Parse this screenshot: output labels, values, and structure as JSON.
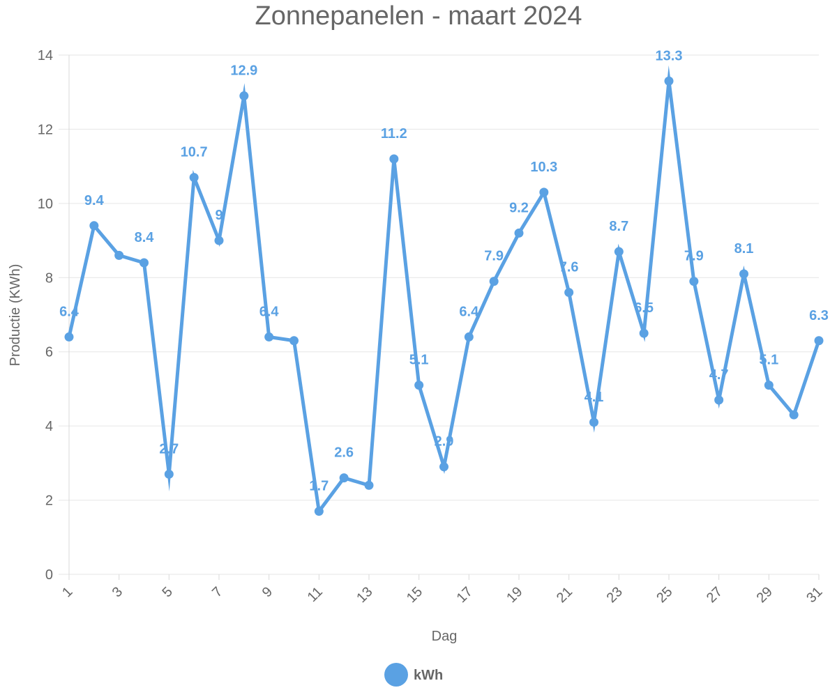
{
  "chart_data": {
    "type": "line",
    "title": "Zonnepanelen - maart 2024",
    "xlabel": "Dag",
    "ylabel": "Productie (KWh)",
    "ylim": [
      0,
      14
    ],
    "yticks": [
      0,
      2,
      4,
      6,
      8,
      10,
      12,
      14
    ],
    "xticks": [
      "1",
      "3",
      "5",
      "7",
      "9",
      "11",
      "13",
      "15",
      "17",
      "19",
      "21",
      "23",
      "25",
      "27",
      "29",
      "31"
    ],
    "x": [
      1,
      2,
      3,
      4,
      5,
      6,
      7,
      8,
      9,
      10,
      11,
      12,
      13,
      14,
      15,
      16,
      17,
      18,
      19,
      20,
      21,
      22,
      23,
      24,
      25,
      26,
      27,
      28,
      29,
      30,
      31
    ],
    "series": [
      {
        "name": "kWh",
        "color": "#5aa1e3",
        "values": [
          6.4,
          9.4,
          8.6,
          8.4,
          2.7,
          10.7,
          9,
          12.9,
          6.4,
          6.3,
          1.7,
          2.6,
          2.4,
          11.2,
          5.1,
          2.9,
          6.4,
          7.9,
          9.2,
          10.3,
          7.6,
          4.1,
          8.7,
          6.5,
          13.3,
          7.9,
          4.7,
          8.1,
          5.1,
          4.3,
          6.3
        ],
        "labels": [
          "6.4",
          "9.4",
          "",
          "8.4",
          "2.7",
          "10.7",
          "9",
          "12.9",
          "6.4",
          "",
          "1.7",
          "2.6",
          "",
          "11.2",
          "5.1",
          "2.9",
          "6.4",
          "7.9",
          "9.2",
          "10.3",
          "7.6",
          "4.1",
          "8.7",
          "6.5",
          "13.3",
          "7.9",
          "4.7",
          "8.1",
          "5.1",
          "",
          "6.3"
        ]
      }
    ],
    "grid": true,
    "legend": "bottom-center"
  }
}
